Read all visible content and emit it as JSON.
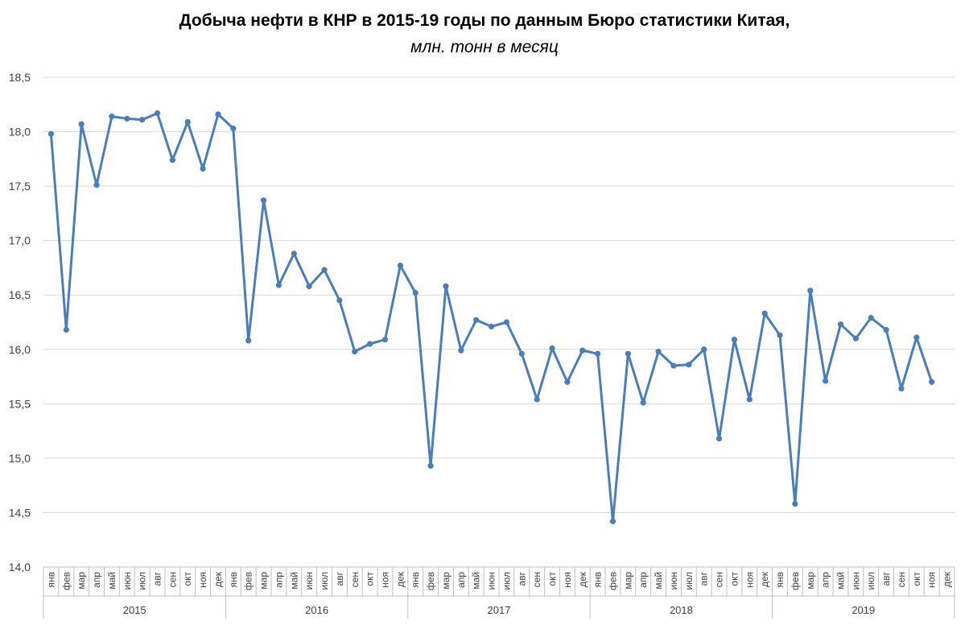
{
  "chart_data": {
    "type": "line",
    "title": "Добыча нефти в КНР в 2015-19 годы по данным Бюро статистики Китая,",
    "subtitle": "млн. тонн в месяц",
    "xlabel": "",
    "ylabel": "",
    "ylim": [
      14.0,
      18.5
    ],
    "yticks": [
      "14,0",
      "14,5",
      "15,0",
      "15,5",
      "16,0",
      "16,5",
      "17,0",
      "17,5",
      "18,0",
      "18,5"
    ],
    "grid": true,
    "color": "#4a7ebb",
    "years": [
      "2015",
      "2016",
      "2017",
      "2018",
      "2019"
    ],
    "months": [
      "янв",
      "фев",
      "мар",
      "апр",
      "май",
      "июн",
      "июл",
      "авг",
      "сен",
      "окт",
      "ноя",
      "дек"
    ],
    "series": [
      {
        "values": [
          17.98,
          16.18,
          18.07,
          17.51,
          18.14,
          18.12,
          18.11,
          18.17,
          17.74,
          18.09,
          17.66,
          18.16,
          18.03,
          16.08,
          17.37,
          16.59,
          16.88,
          16.58,
          16.73,
          16.45,
          15.98,
          16.05,
          16.09,
          16.77,
          16.52,
          14.93,
          16.58,
          15.99,
          16.27,
          16.21,
          16.25,
          15.96,
          15.54,
          16.01,
          15.7,
          15.99,
          15.96,
          14.42,
          15.96,
          15.51,
          15.98,
          15.85,
          15.86,
          16.0,
          15.18,
          16.09,
          15.54,
          16.33,
          16.13,
          14.58,
          16.54,
          15.71,
          16.23,
          16.1,
          16.29,
          16.18,
          15.64,
          16.11,
          15.7
        ]
      }
    ]
  }
}
